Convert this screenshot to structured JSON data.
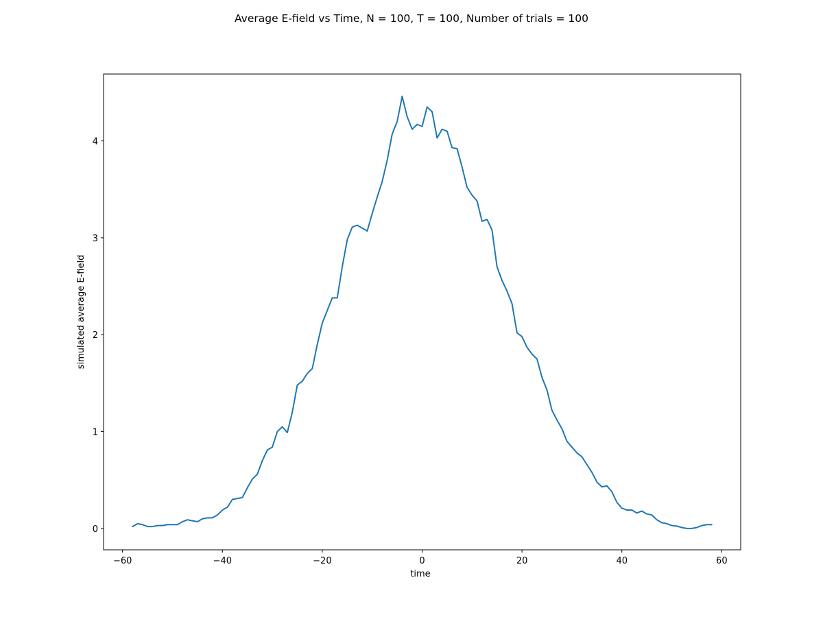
{
  "chart_data": {
    "type": "line",
    "title": "Average E-field vs Time, N = 100, T = 100, Number of trials = 100",
    "x_label": "time",
    "y_label": "simulated average E-field",
    "x": [
      -58,
      -57,
      -56,
      -55,
      -54,
      -53,
      -52,
      -51,
      -50,
      -49,
      -48,
      -47,
      -46,
      -45,
      -44,
      -43,
      -42,
      -41,
      -40,
      -39,
      -38,
      -37,
      -36,
      -35,
      -34,
      -33,
      -32,
      -31,
      -30,
      -29,
      -28,
      -27,
      -26,
      -25,
      -24,
      -23,
      -22,
      -21,
      -20,
      -19,
      -18,
      -17,
      -16,
      -15,
      -14,
      -13,
      -12,
      -11,
      -10,
      -9,
      -8,
      -7,
      -6,
      -5,
      -4,
      -3,
      -2,
      -1,
      0,
      1,
      2,
      3,
      4,
      5,
      6,
      7,
      8,
      9,
      10,
      11,
      12,
      13,
      14,
      15,
      16,
      17,
      18,
      19,
      20,
      21,
      22,
      23,
      24,
      25,
      26,
      27,
      28,
      29,
      30,
      31,
      32,
      33,
      34,
      35,
      36,
      37,
      38,
      39,
      40,
      41,
      42,
      43,
      44,
      45,
      46,
      47,
      48,
      49,
      50,
      51,
      52,
      53,
      54,
      55,
      56,
      57,
      58
    ],
    "values": [
      0.02,
      0.05,
      0.04,
      0.02,
      0.02,
      0.03,
      0.03,
      0.04,
      0.04,
      0.04,
      0.07,
      0.09,
      0.08,
      0.07,
      0.1,
      0.11,
      0.11,
      0.14,
      0.19,
      0.22,
      0.3,
      0.31,
      0.32,
      0.42,
      0.51,
      0.56,
      0.7,
      0.81,
      0.84,
      1.0,
      1.05,
      0.99,
      1.2,
      1.48,
      1.52,
      1.6,
      1.65,
      1.9,
      2.12,
      2.25,
      2.38,
      2.38,
      2.7,
      2.98,
      3.11,
      3.13,
      3.1,
      3.07,
      3.25,
      3.42,
      3.58,
      3.8,
      4.07,
      4.2,
      4.46,
      4.25,
      4.12,
      4.17,
      4.15,
      4.35,
      4.3,
      4.03,
      4.12,
      4.1,
      3.93,
      3.92,
      3.73,
      3.52,
      3.44,
      3.38,
      3.17,
      3.19,
      3.08,
      2.7,
      2.56,
      2.45,
      2.32,
      2.02,
      1.98,
      1.87,
      1.8,
      1.75,
      1.56,
      1.43,
      1.22,
      1.12,
      1.03,
      0.9,
      0.84,
      0.78,
      0.74,
      0.66,
      0.58,
      0.48,
      0.43,
      0.44,
      0.38,
      0.27,
      0.21,
      0.19,
      0.19,
      0.16,
      0.18,
      0.15,
      0.14,
      0.09,
      0.06,
      0.05,
      0.03,
      0.025,
      0.01,
      0.0,
      0.0,
      0.01,
      0.03,
      0.04,
      0.04
    ],
    "color": "#1f77b4",
    "xlim": [
      -63.8,
      63.8
    ],
    "ylim": [
      -0.22,
      4.69
    ],
    "xticks": [
      {
        "value": -60,
        "label": "−60"
      },
      {
        "value": -40,
        "label": "−40"
      },
      {
        "value": -20,
        "label": "−20"
      },
      0,
      20,
      40,
      60
    ],
    "yticks": [
      0,
      1,
      2,
      3,
      4
    ],
    "grid": false
  }
}
